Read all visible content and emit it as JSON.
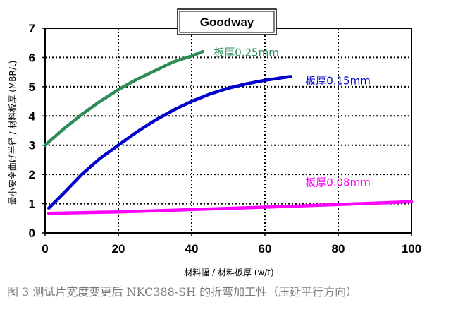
{
  "chart_data": {
    "type": "line",
    "title": "Goodway",
    "xlabel": "材料幅 / 材料板厚  (w/t)",
    "ylabel": "最小安全曲げ半径 / 材料板厚 (MBR/t)",
    "xlim": [
      0,
      100
    ],
    "ylim": [
      0,
      7
    ],
    "x_ticks": [
      "0",
      "20",
      "40",
      "60",
      "80",
      "100"
    ],
    "y_ticks": [
      "0",
      "1",
      "2",
      "3",
      "4",
      "5",
      "6",
      "7"
    ],
    "grid": true,
    "series": [
      {
        "name": "板厚0.25mm",
        "color": "#2e8b57",
        "points": [
          [
            0,
            3.0
          ],
          [
            5,
            3.55
          ],
          [
            10,
            4.05
          ],
          [
            15,
            4.5
          ],
          [
            20,
            4.9
          ],
          [
            25,
            5.25
          ],
          [
            30,
            5.55
          ],
          [
            35,
            5.85
          ],
          [
            40,
            6.05
          ],
          [
            43,
            6.2
          ]
        ]
      },
      {
        "name": "板厚0.15mm",
        "color": "#0000cc",
        "points": [
          [
            1,
            0.85
          ],
          [
            5,
            1.35
          ],
          [
            10,
            2.0
          ],
          [
            15,
            2.55
          ],
          [
            20,
            3.0
          ],
          [
            25,
            3.45
          ],
          [
            30,
            3.85
          ],
          [
            35,
            4.2
          ],
          [
            40,
            4.5
          ],
          [
            45,
            4.75
          ],
          [
            50,
            4.95
          ],
          [
            55,
            5.1
          ],
          [
            60,
            5.22
          ],
          [
            67,
            5.35
          ]
        ]
      },
      {
        "name": "板厚0.08mm",
        "color": "#ff00ff",
        "points": [
          [
            1,
            0.67
          ],
          [
            20,
            0.72
          ],
          [
            40,
            0.8
          ],
          [
            60,
            0.88
          ],
          [
            80,
            0.97
          ],
          [
            100,
            1.07
          ]
        ]
      }
    ]
  },
  "caption": "图 3    测试片宽度变更后 NKC388-SH 的折弯加工性（压延平行方向）"
}
